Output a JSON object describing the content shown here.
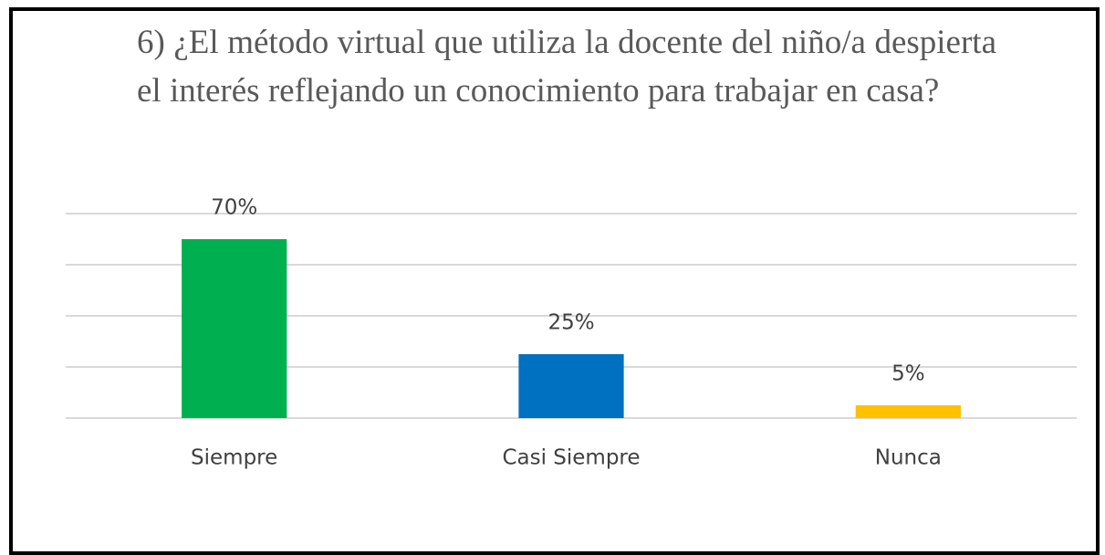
{
  "chart_data": {
    "type": "bar",
    "title": "6) ¿El método virtual que utiliza la docente del niño/a despierta el interés reflejando un conocimiento para trabajar en casa?",
    "categories": [
      "Siempre",
      "Casi Siempre",
      "Nunca"
    ],
    "values": [
      70,
      25,
      5
    ],
    "value_labels": [
      "70%",
      "25%",
      "5%"
    ],
    "colors": [
      "#00b050",
      "#0070c0",
      "#ffc000"
    ],
    "ylim": [
      0,
      80
    ],
    "yticks": [
      0,
      20,
      40,
      60,
      80
    ],
    "grid": true
  }
}
